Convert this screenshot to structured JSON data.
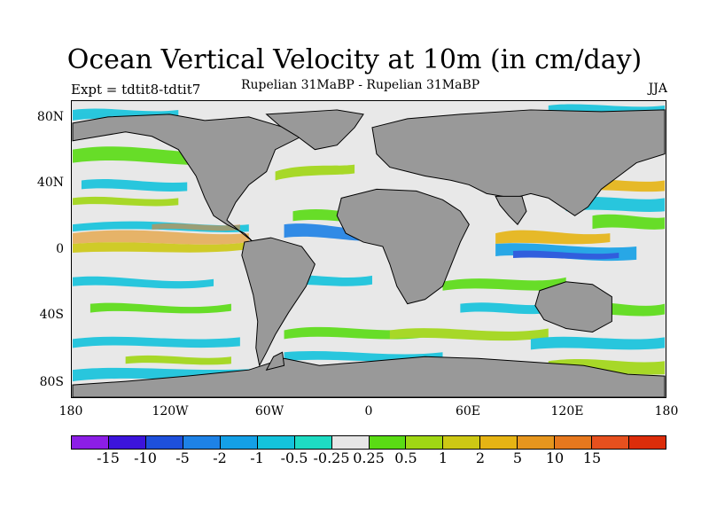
{
  "title": "Ocean Vertical Velocity at 10m (in cm/day)",
  "experiment": "Expt = tdtit8-tdtit7",
  "subtitle": "Rupelian  31MaBP - Rupelian  31MaBP",
  "season": "JJA",
  "lat_ticks": [
    "80N",
    "40N",
    "0",
    "40S",
    "80S"
  ],
  "lon_ticks": [
    "180",
    "120W",
    "60W",
    "0",
    "60E",
    "120E",
    "180"
  ],
  "colorbar": {
    "colors": [
      "#8c1ee6",
      "#3c14dc",
      "#1e50dc",
      "#1e82e6",
      "#14a0e6",
      "#14c3dc",
      "#1edcc3",
      "#e6e6e6",
      "#5adc14",
      "#a0d714",
      "#cdc814",
      "#e6b414",
      "#e6961e",
      "#e6781e",
      "#e6501e",
      "#dc2d0a"
    ],
    "labels": [
      "-15",
      "-10",
      "-5",
      "-2",
      "-1",
      "-0.5",
      "-0.25",
      "0.25",
      "0.5",
      "1",
      "2",
      "5",
      "10",
      "15"
    ]
  }
}
